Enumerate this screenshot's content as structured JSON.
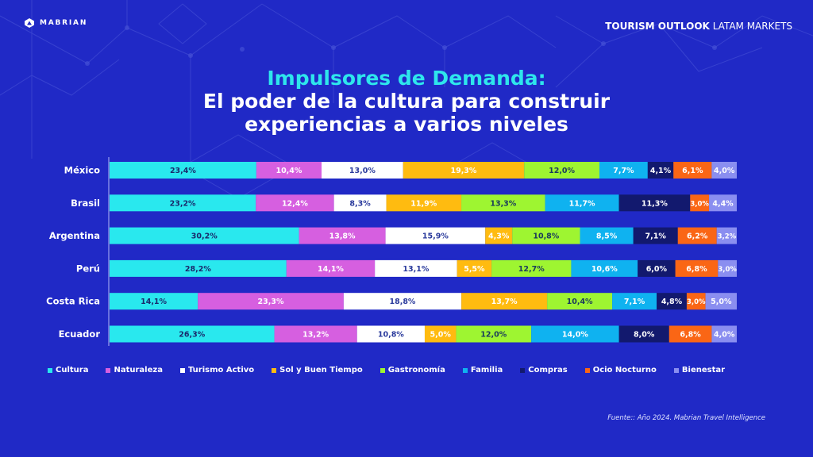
{
  "brand": {
    "logo_text": "MABRIAN"
  },
  "header": {
    "report_bold": "TOURISM OUTLOOK",
    "report_light": "LATAM MARKETS"
  },
  "title": {
    "line1": "Impulsores de Demanda:",
    "line2": "El poder de la cultura para construir",
    "line3": "experiencias a varios niveles"
  },
  "source": "Fuente:: Año 2024. Mabrian Travel Intelligence",
  "chart_data": {
    "type": "bar",
    "orientation": "horizontal",
    "stacked": true,
    "normalized_to_100": true,
    "title": "Impulsores de Demanda: El poder de la cultura para construir experiencias a varios niveles",
    "xlabel": "",
    "ylabel": "",
    "xlim": [
      0,
      100
    ],
    "grid": false,
    "legend_position": "bottom",
    "categories": [
      "México",
      "Brasil",
      "Argentina",
      "Perú",
      "Costa Rica",
      "Ecuador"
    ],
    "series": [
      {
        "name": "Cultura",
        "color": "#29e8ee",
        "label_color": "#1a2a6c",
        "values": [
          23.4,
          23.2,
          30.2,
          28.2,
          14.1,
          26.3
        ]
      },
      {
        "name": "Naturaleza",
        "color": "#d65fe0",
        "label_color": "#ffffff",
        "values": [
          10.4,
          12.4,
          13.8,
          14.1,
          23.3,
          13.2
        ]
      },
      {
        "name": "Turismo Activo",
        "color": "#ffffff",
        "label_color": "#2a3a9c",
        "values": [
          13.0,
          8.3,
          15.9,
          13.1,
          18.8,
          10.8
        ]
      },
      {
        "name": "Sol y Buen Tiempo",
        "color": "#ffbb10",
        "label_color": "#ffffff",
        "values": [
          19.3,
          11.9,
          4.3,
          5.5,
          13.7,
          5.0
        ]
      },
      {
        "name": "Gastronomía",
        "color": "#9ef531",
        "label_color": "#1a3a5c",
        "values": [
          12.0,
          13.3,
          10.8,
          12.7,
          10.4,
          12.0
        ]
      },
      {
        "name": "Familia",
        "color": "#0fb2f0",
        "label_color": "#ffffff",
        "values": [
          7.7,
          11.7,
          8.5,
          10.6,
          7.1,
          14.0
        ]
      },
      {
        "name": "Compras",
        "color": "#12196e",
        "label_color": "#ffffff",
        "values": [
          4.1,
          11.3,
          7.1,
          6.0,
          4.8,
          8.0
        ]
      },
      {
        "name": "Ocio Nocturno",
        "color": "#fa6615",
        "label_color": "#ffffff",
        "values": [
          6.1,
          3.0,
          6.2,
          6.8,
          3.0,
          6.8
        ]
      },
      {
        "name": "Bienestar",
        "color": "#8a8ef0",
        "label_color": "#ffffff",
        "values": [
          4.0,
          4.4,
          3.2,
          3.0,
          5.0,
          4.0
        ]
      }
    ],
    "value_format": "comma-decimal-percent"
  }
}
